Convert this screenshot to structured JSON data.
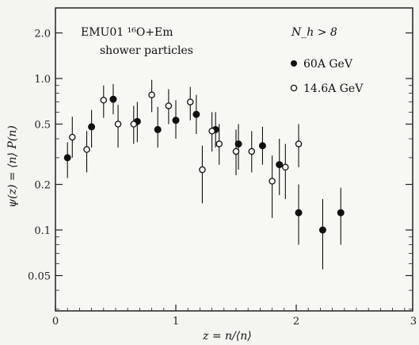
{
  "chart_data": {
    "type": "scatter",
    "title": "EMU01 ¹⁶O+Em",
    "subtitle": "shower particles",
    "condition": "N_h > 8",
    "xlabel": "z = n/⟨n⟩",
    "ylabel": "ψ(z) = ⟨n⟩ P(n)",
    "y_scale": "log",
    "xlim": [
      0,
      3
    ],
    "ylim": [
      0.025,
      3
    ],
    "x_ticks": [
      {
        "value": 0,
        "label": "0"
      },
      {
        "value": 1,
        "label": "1"
      },
      {
        "value": 2,
        "label": "2"
      },
      {
        "value": 3,
        "label": "3"
      }
    ],
    "y_ticks": [
      {
        "value": 2.0,
        "label": "2.0"
      },
      {
        "value": 1.0,
        "label": "1.0"
      },
      {
        "value": 0.5,
        "label": "0.5"
      },
      {
        "value": 0.2,
        "label": "0.2"
      },
      {
        "value": 0.1,
        "label": "0.1"
      },
      {
        "value": 0.05,
        "label": "0.05"
      }
    ],
    "legend_position": "top-right",
    "series": [
      {
        "name": "60A GeV",
        "marker": "filled-circle",
        "points": [
          {
            "x": 0.1,
            "y": 0.3,
            "lo": 0.22,
            "hi": 0.38
          },
          {
            "x": 0.3,
            "y": 0.48,
            "lo": 0.35,
            "hi": 0.62
          },
          {
            "x": 0.48,
            "y": 0.73,
            "lo": 0.58,
            "hi": 0.92
          },
          {
            "x": 0.68,
            "y": 0.52,
            "lo": 0.38,
            "hi": 0.7
          },
          {
            "x": 0.85,
            "y": 0.46,
            "lo": 0.35,
            "hi": 0.65
          },
          {
            "x": 1.0,
            "y": 0.53,
            "lo": 0.4,
            "hi": 0.72
          },
          {
            "x": 1.17,
            "y": 0.58,
            "lo": 0.43,
            "hi": 0.78
          },
          {
            "x": 1.33,
            "y": 0.46,
            "lo": 0.35,
            "hi": 0.6
          },
          {
            "x": 1.52,
            "y": 0.37,
            "lo": 0.25,
            "hi": 0.5
          },
          {
            "x": 1.72,
            "y": 0.36,
            "lo": 0.27,
            "hi": 0.48
          },
          {
            "x": 1.86,
            "y": 0.27,
            "lo": 0.17,
            "hi": 0.4
          },
          {
            "x": 2.02,
            "y": 0.13,
            "lo": 0.08,
            "hi": 0.2
          },
          {
            "x": 2.22,
            "y": 0.1,
            "lo": 0.055,
            "hi": 0.16
          },
          {
            "x": 2.37,
            "y": 0.13,
            "lo": 0.08,
            "hi": 0.19
          }
        ]
      },
      {
        "name": "14.6A GeV",
        "marker": "open-circle",
        "points": [
          {
            "x": 0.14,
            "y": 0.41,
            "lo": 0.3,
            "hi": 0.56
          },
          {
            "x": 0.26,
            "y": 0.34,
            "lo": 0.24,
            "hi": 0.45
          },
          {
            "x": 0.4,
            "y": 0.72,
            "lo": 0.55,
            "hi": 0.9
          },
          {
            "x": 0.52,
            "y": 0.5,
            "lo": 0.35,
            "hi": 0.67
          },
          {
            "x": 0.65,
            "y": 0.5,
            "lo": 0.37,
            "hi": 0.66
          },
          {
            "x": 0.8,
            "y": 0.78,
            "lo": 0.6,
            "hi": 0.98
          },
          {
            "x": 0.94,
            "y": 0.66,
            "lo": 0.5,
            "hi": 0.85
          },
          {
            "x": 1.12,
            "y": 0.7,
            "lo": 0.53,
            "hi": 0.88
          },
          {
            "x": 1.3,
            "y": 0.45,
            "lo": 0.33,
            "hi": 0.6
          },
          {
            "x": 1.36,
            "y": 0.37,
            "lo": 0.27,
            "hi": 0.5
          },
          {
            "x": 1.22,
            "y": 0.25,
            "lo": 0.15,
            "hi": 0.36
          },
          {
            "x": 1.5,
            "y": 0.33,
            "lo": 0.23,
            "hi": 0.46
          },
          {
            "x": 1.63,
            "y": 0.33,
            "lo": 0.24,
            "hi": 0.45
          },
          {
            "x": 1.8,
            "y": 0.21,
            "lo": 0.12,
            "hi": 0.31
          },
          {
            "x": 1.91,
            "y": 0.26,
            "lo": 0.16,
            "hi": 0.37
          },
          {
            "x": 2.02,
            "y": 0.37,
            "lo": 0.26,
            "hi": 0.5
          }
        ]
      }
    ]
  }
}
